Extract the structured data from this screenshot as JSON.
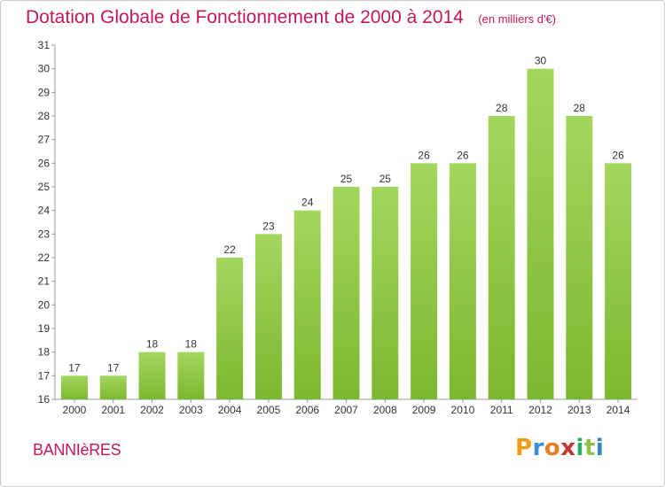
{
  "chart_data": {
    "type": "bar",
    "title": "Dotation Globale de Fonctionnement de 2000 à 2014",
    "subtitle": "(en milliers d'€)",
    "categories": [
      "2000",
      "2001",
      "2002",
      "2003",
      "2004",
      "2005",
      "2006",
      "2007",
      "2008",
      "2009",
      "2010",
      "2011",
      "2012",
      "2013",
      "2014"
    ],
    "values": [
      17,
      17,
      18,
      18,
      22,
      23,
      24,
      25,
      25,
      26,
      26,
      28,
      30,
      28,
      26
    ],
    "ylim": [
      16,
      31
    ],
    "yticks": [
      16,
      17,
      18,
      19,
      20,
      21,
      22,
      23,
      24,
      25,
      26,
      27,
      28,
      29,
      30,
      31
    ],
    "xlabel": "",
    "ylabel": "",
    "grid": false,
    "bar_color": "#7cb82f",
    "bar_color_light": "#a4d65e"
  },
  "place": "BANNIèRES",
  "logo": {
    "letters": [
      "P",
      "r",
      "o",
      "x",
      "i",
      "t",
      "i"
    ],
    "colors": [
      "#f39c12",
      "#3b8fd4",
      "#e67e22",
      "#c0392b",
      "#27ae60",
      "#8bc34a",
      "#2e86c1"
    ]
  },
  "title_color": "#c2185b"
}
